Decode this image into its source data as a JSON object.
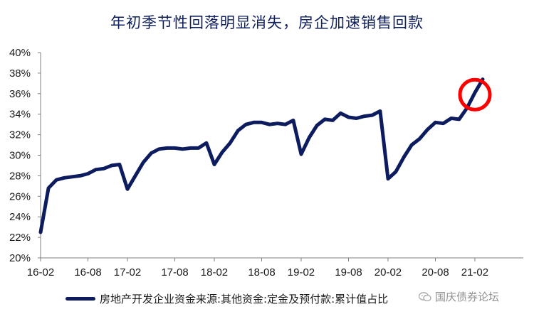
{
  "chart_data": {
    "type": "line",
    "title": "年初季节性回落明显消失，房企加速销售回款",
    "xlabel": "",
    "ylabel": "",
    "ylim": [
      20,
      40
    ],
    "yticks": [
      "20%",
      "22%",
      "24%",
      "26%",
      "28%",
      "30%",
      "32%",
      "34%",
      "36%",
      "38%",
      "40%"
    ],
    "xticks": [
      "16-02",
      "16-08",
      "17-02",
      "17-08",
      "18-02",
      "18-08",
      "19-02",
      "19-08",
      "20-02",
      "20-08",
      "21-02"
    ],
    "grid": false,
    "legend_position": "bottom-left",
    "x": [
      "16-02",
      "16-03",
      "16-04",
      "16-05",
      "16-06",
      "16-07",
      "16-08",
      "16-09",
      "16-10",
      "16-11",
      "16-12",
      "17-02",
      "17-03",
      "17-04",
      "17-05",
      "17-06",
      "17-07",
      "17-08",
      "17-09",
      "17-10",
      "17-11",
      "17-12",
      "18-02",
      "18-03",
      "18-04",
      "18-05",
      "18-06",
      "18-07",
      "18-08",
      "18-09",
      "18-10",
      "18-11",
      "18-12",
      "19-02",
      "19-03",
      "19-04",
      "19-05",
      "19-06",
      "19-07",
      "19-08",
      "19-09",
      "19-10",
      "19-11",
      "19-12",
      "20-02",
      "20-03",
      "20-04",
      "20-05",
      "20-06",
      "20-07",
      "20-08",
      "20-09",
      "20-10",
      "20-11",
      "20-12",
      "21-02",
      "21-03"
    ],
    "series": [
      {
        "name": "房地产开发企业资金来源:其他资金:定金及预付款:累计值占比",
        "color": "#0c1c5e",
        "values": [
          22.5,
          26.8,
          27.6,
          27.8,
          27.9,
          28.0,
          28.2,
          28.6,
          28.7,
          29.0,
          29.1,
          26.7,
          28.0,
          29.3,
          30.2,
          30.6,
          30.7,
          30.7,
          30.6,
          30.7,
          30.7,
          31.2,
          29.1,
          30.3,
          31.2,
          32.4,
          33.0,
          33.2,
          33.2,
          33.0,
          33.1,
          33.0,
          33.4,
          30.1,
          31.7,
          32.9,
          33.5,
          33.4,
          34.1,
          33.7,
          33.6,
          33.8,
          33.9,
          34.3,
          27.7,
          28.4,
          29.8,
          31.0,
          31.6,
          32.5,
          33.2,
          33.1,
          33.6,
          33.5,
          34.6,
          36.1,
          37.4
        ]
      }
    ],
    "highlight_circle": {
      "x": "21-02",
      "y": 35.9,
      "color": "#ff0000"
    }
  },
  "watermark": {
    "text": "国庆债券论坛",
    "icon": "wechat-icon"
  }
}
